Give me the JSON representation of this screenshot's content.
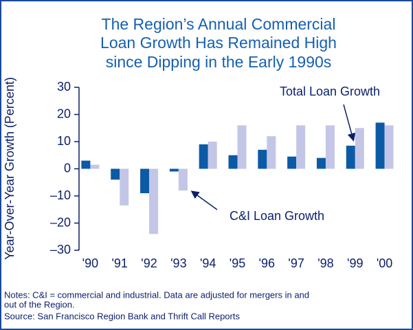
{
  "chart_data": {
    "type": "bar",
    "title": [
      "The Region’s Annual Commercial",
      "Loan Growth Has Remained High",
      "since Dipping in the Early 1990s"
    ],
    "y_label": "Year-Over-Year Growth (Percent)",
    "categories": [
      "'90",
      "'91",
      "'92",
      "'93",
      "'94",
      "'95",
      "'96",
      "'97",
      "'98",
      "'99",
      "'00"
    ],
    "series": [
      {
        "name": "Total Loan Growth",
        "color": "#0b5aa6",
        "values": [
          3,
          -4,
          -9,
          -1,
          9,
          5,
          7,
          4.5,
          4,
          8.5,
          17
        ]
      },
      {
        "name": "C&I Loan Growth",
        "color": "#c3c6e6",
        "values": [
          1.5,
          -13.5,
          -24,
          -8,
          10,
          16,
          12,
          16,
          16,
          15,
          16
        ]
      }
    ],
    "ylim": [
      -30,
      30
    ],
    "yticks": [
      {
        "value": -30,
        "label": "–30"
      },
      {
        "value": -20,
        "label": "–20"
      },
      {
        "value": -10,
        "label": "–10"
      },
      0,
      10,
      20,
      30
    ],
    "notes": [
      "Notes:  C&I = commercial and industrial. Data are adjusted for mergers in and",
      "out of the Region."
    ],
    "source": "Source:  San Francisco Region Bank and Thrift Call Reports"
  }
}
